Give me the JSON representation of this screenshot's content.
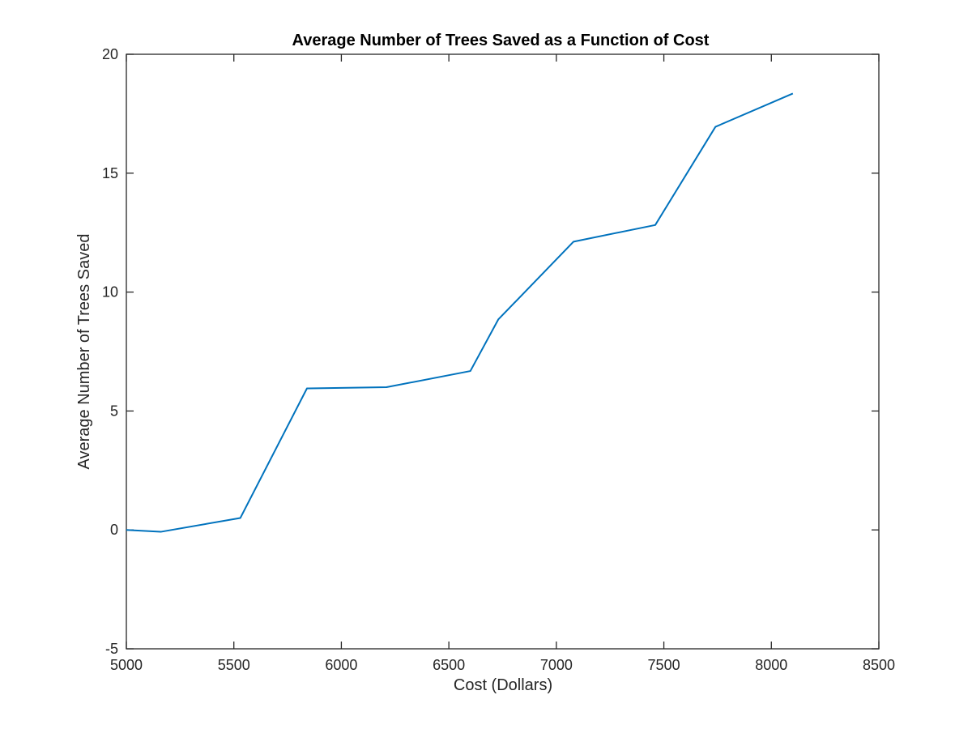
{
  "chart_data": {
    "type": "line",
    "title": "Average Number of Trees Saved as a Function of Cost",
    "xlabel": "Cost (Dollars)",
    "ylabel": "Average Number of Trees Saved",
    "xlim": [
      5000,
      8500
    ],
    "ylim": [
      -5,
      20
    ],
    "xticks": [
      5000,
      5500,
      6000,
      6500,
      7000,
      7500,
      8000,
      8500
    ],
    "yticks": [
      -5,
      0,
      5,
      10,
      15,
      20
    ],
    "xtick_labels": [
      "5000",
      "5500",
      "6000",
      "6500",
      "7000",
      "7500",
      "8000",
      "8500"
    ],
    "ytick_labels": [
      "-5",
      "0",
      "5",
      "10",
      "15",
      "20"
    ],
    "grid": false,
    "series": [
      {
        "color": "#0072BD",
        "x": [
          5000,
          5160,
          5530,
          5840,
          6210,
          6600,
          6730,
          7080,
          7460,
          7740,
          8100
        ],
        "y": [
          0,
          -0.08,
          0.5,
          5.95,
          6.0,
          6.68,
          8.85,
          12.12,
          12.82,
          16.95,
          18.35
        ]
      }
    ]
  }
}
